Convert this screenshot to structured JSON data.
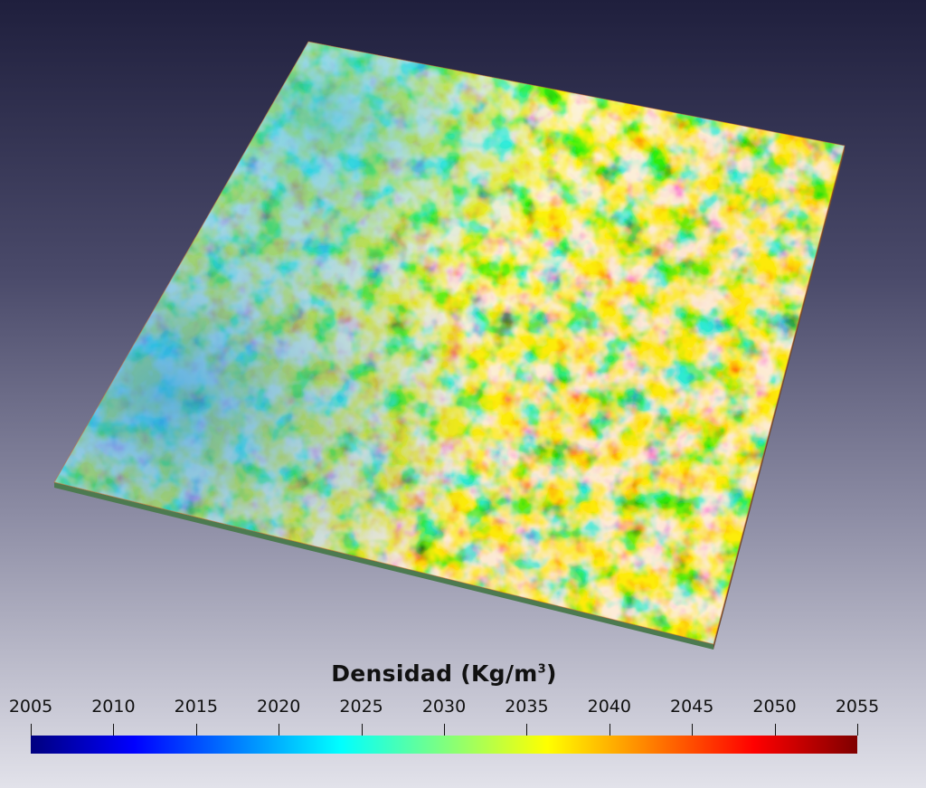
{
  "legend": {
    "title_text": "Densidad (Kg/m",
    "title_sup": "3",
    "title_close": ")",
    "ticks": [
      "2005",
      "2010",
      "2015",
      "2020",
      "2025",
      "2030",
      "2035",
      "2040",
      "2045",
      "2050",
      "2055"
    ],
    "range": [
      2005,
      2055
    ]
  },
  "colormap": {
    "name": "jet",
    "stops": [
      "#00007f",
      "#0000ff",
      "#007fff",
      "#00ffff",
      "#7fff7f",
      "#ffff00",
      "#ff7f00",
      "#ff0000",
      "#7f0000"
    ]
  },
  "scene": {
    "background_top": "#1f1f3d",
    "background_bottom": "#e2e2ea",
    "object": "density-slab"
  }
}
